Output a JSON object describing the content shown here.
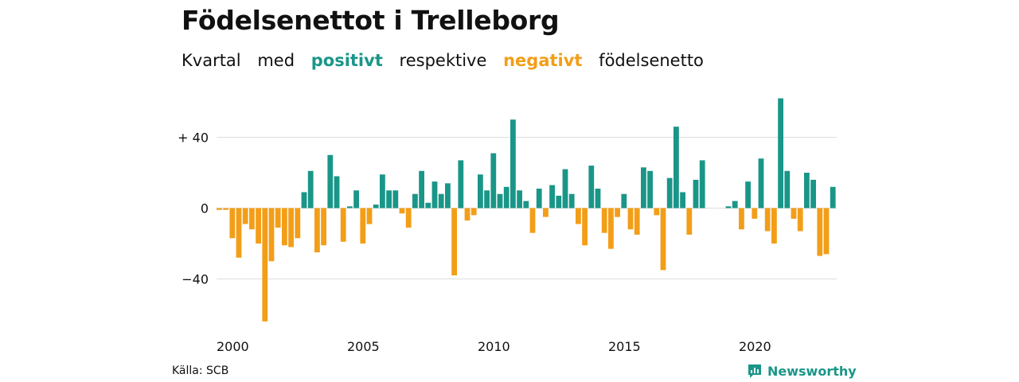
{
  "title": "Födelsenettot i Trelleborg",
  "subtitle": {
    "pre1": "Kvartal",
    "pre2": "med",
    "positive_word": "positivt",
    "mid": "respektive",
    "negative_word": "negativt",
    "post": "födelsenetto"
  },
  "colors": {
    "positive": "#1a9688",
    "negative": "#f29e18",
    "grid": "#dddddd"
  },
  "source": "Källa: SCB",
  "brand": {
    "name": "Newsworthy",
    "icon": "newsworthy-logo-icon"
  },
  "chart_data": {
    "type": "bar",
    "title": "Födelsenettot i Trelleborg",
    "subtitle": "Kvartal med positivt respektive negativt födelsenetto",
    "x_start_year": 2000,
    "periods_per_year": 4,
    "x_ticks": [
      "2000",
      "2005",
      "2010",
      "2015",
      "2020"
    ],
    "y_ticks": [
      {
        "value": 40,
        "label": "+ 40"
      },
      {
        "value": 0,
        "label": "0"
      },
      {
        "value": -40,
        "label": "−40"
      }
    ],
    "ylim": [
      -64,
      62
    ],
    "grid": true,
    "values": [
      -1,
      -1,
      -17,
      -28,
      -9,
      -12,
      -20,
      -64,
      -30,
      -11,
      -21,
      -22,
      -17,
      9,
      21,
      -25,
      -21,
      30,
      18,
      -19,
      1,
      10,
      -20,
      -9,
      2,
      19,
      10,
      10,
      -3,
      -11,
      8,
      21,
      3,
      15,
      8,
      14,
      -38,
      27,
      -7,
      -4,
      19,
      10,
      31,
      8,
      12,
      50,
      10,
      4,
      -14,
      11,
      -5,
      13,
      7,
      22,
      8,
      -9,
      -21,
      24,
      11,
      -14,
      -23,
      -5,
      8,
      -12,
      -15,
      23,
      21,
      -4,
      -35,
      17,
      46,
      9,
      -15,
      16,
      27,
      0,
      0,
      0,
      1,
      4,
      -12,
      15,
      -6,
      28,
      -13,
      -20,
      62,
      21,
      -6,
      -13,
      20,
      16,
      -27,
      -26,
      12
    ]
  }
}
